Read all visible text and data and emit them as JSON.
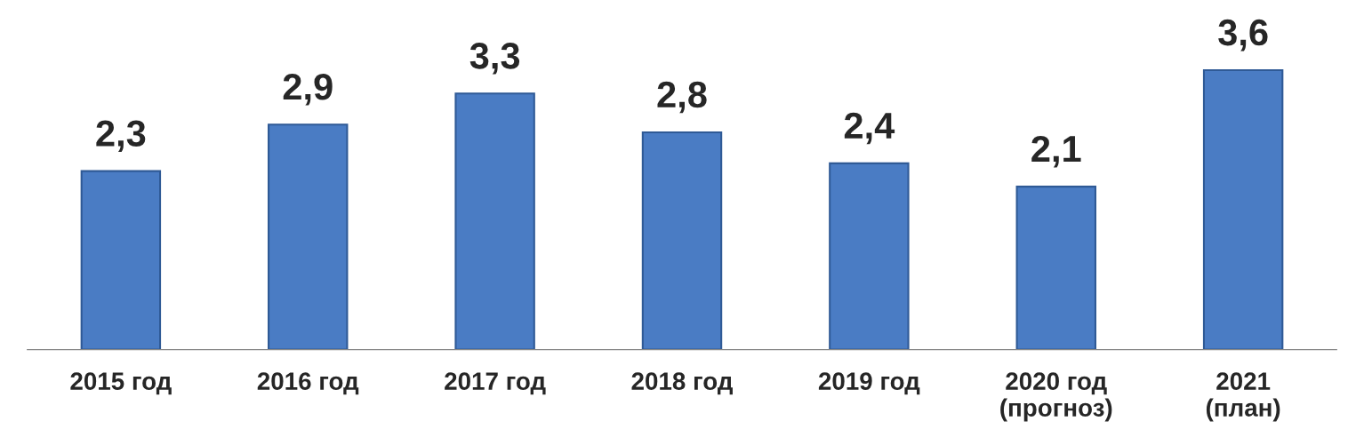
{
  "chart_data": {
    "type": "bar",
    "categories": [
      "2015 год",
      "2016 год",
      "2017 год",
      "2018 год",
      "2019 год",
      "2020 год\n(прогноз)",
      "2021\n(план)"
    ],
    "values": [
      2.3,
      2.9,
      3.3,
      2.8,
      2.4,
      2.1,
      3.6
    ],
    "value_labels": [
      "2,3",
      "2,9",
      "3,3",
      "2,8",
      "2,4",
      "2,1",
      "3,6"
    ],
    "color": "#4a7cc4",
    "grid": false,
    "legend": false
  }
}
